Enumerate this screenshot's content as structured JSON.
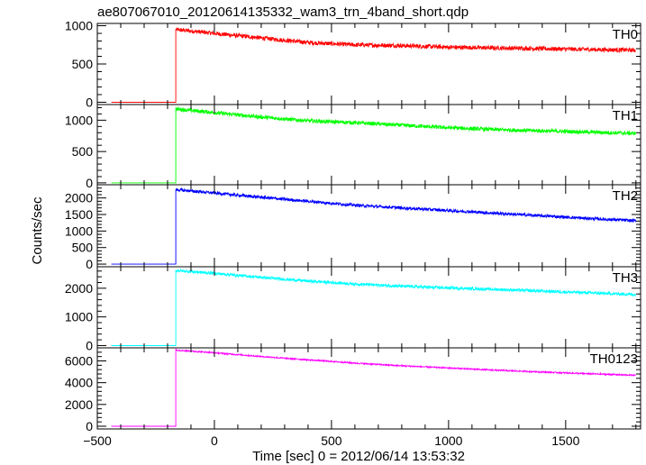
{
  "chart_data": {
    "type": "line",
    "title": "ae807067010_20120614135332_wam3_trn_4band_short.qdp",
    "xlabel": "Time [sec] 0 = 2012/06/14 13:53:32",
    "ylabel": "Counts/sec",
    "xlim": [
      -500,
      1820
    ],
    "x_ticks": [
      -500,
      0,
      500,
      1000,
      1500
    ],
    "x_tick_labels": [
      "−500",
      "0",
      "500",
      "1000",
      "1500"
    ],
    "grid": false,
    "panels": [
      {
        "name": "TH0",
        "color": "#ff0000",
        "ylim": [
          -30,
          1030
        ],
        "y_ticks": [
          0,
          500,
          1000
        ],
        "points": [
          [
            -440,
            0
          ],
          [
            -165,
            0
          ],
          [
            -165,
            950
          ],
          [
            0,
            900
          ],
          [
            200,
            840
          ],
          [
            400,
            780
          ],
          [
            600,
            750
          ],
          [
            800,
            740
          ],
          [
            1000,
            720
          ],
          [
            1200,
            710
          ],
          [
            1400,
            700
          ],
          [
            1600,
            690
          ],
          [
            1800,
            680
          ]
        ],
        "noise": 28
      },
      {
        "name": "TH1",
        "color": "#00ff00",
        "ylim": [
          -30,
          1250
        ],
        "y_ticks": [
          0,
          500,
          1000
        ],
        "points": [
          [
            -440,
            0
          ],
          [
            -165,
            0
          ],
          [
            -165,
            1180
          ],
          [
            0,
            1120
          ],
          [
            200,
            1050
          ],
          [
            400,
            990
          ],
          [
            600,
            960
          ],
          [
            800,
            920
          ],
          [
            1000,
            880
          ],
          [
            1200,
            850
          ],
          [
            1400,
            830
          ],
          [
            1600,
            810
          ],
          [
            1800,
            790
          ]
        ],
        "noise": 30
      },
      {
        "name": "TH2",
        "color": "#0000ff",
        "ylim": [
          -80,
          2400
        ],
        "y_ticks": [
          0,
          500,
          1000,
          1500,
          2000
        ],
        "points": [
          [
            -440,
            0
          ],
          [
            -165,
            0
          ],
          [
            -165,
            2250
          ],
          [
            0,
            2150
          ],
          [
            200,
            2020
          ],
          [
            400,
            1900
          ],
          [
            600,
            1780
          ],
          [
            800,
            1700
          ],
          [
            1000,
            1620
          ],
          [
            1200,
            1540
          ],
          [
            1400,
            1460
          ],
          [
            1600,
            1380
          ],
          [
            1800,
            1310
          ]
        ],
        "noise": 45
      },
      {
        "name": "TH3",
        "color": "#00ffff",
        "ylim": [
          -80,
          2750
        ],
        "y_ticks": [
          0,
          1000,
          2000
        ],
        "points": [
          [
            -440,
            0
          ],
          [
            -165,
            0
          ],
          [
            -165,
            2620
          ],
          [
            0,
            2520
          ],
          [
            200,
            2380
          ],
          [
            400,
            2250
          ],
          [
            600,
            2150
          ],
          [
            800,
            2070
          ],
          [
            1000,
            2010
          ],
          [
            1200,
            1960
          ],
          [
            1400,
            1900
          ],
          [
            1600,
            1840
          ],
          [
            1800,
            1780
          ]
        ],
        "noise": 50
      },
      {
        "name": "TH0123",
        "color": "#ff00ff",
        "ylim": [
          -250,
          7200
        ],
        "y_ticks": [
          0,
          2000,
          4000,
          6000
        ],
        "points": [
          [
            -440,
            0
          ],
          [
            -165,
            0
          ],
          [
            -165,
            7000
          ],
          [
            0,
            6750
          ],
          [
            200,
            6400
          ],
          [
            400,
            6100
          ],
          [
            600,
            5800
          ],
          [
            800,
            5550
          ],
          [
            1000,
            5350
          ],
          [
            1200,
            5150
          ],
          [
            1400,
            4980
          ],
          [
            1600,
            4820
          ],
          [
            1800,
            4680
          ]
        ],
        "noise": 60
      }
    ]
  }
}
